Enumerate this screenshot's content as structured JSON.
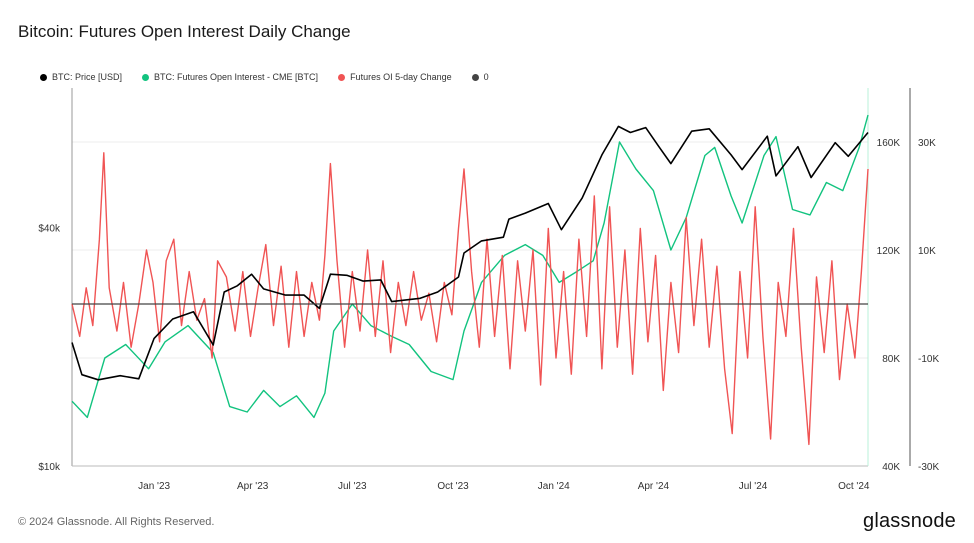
{
  "page": {
    "title": "Bitcoin: Futures Open Interest Daily Change",
    "footer": "© 2024 Glassnode. All Rights Reserved.",
    "brand": "glassnode"
  },
  "legend": [
    {
      "label": "BTC: Price [USD]",
      "color": "#000000"
    },
    {
      "label": "BTC: Futures Open Interest - CME [BTC]",
      "color": "#12c37f"
    },
    {
      "label": "Futures OI 5-day Change",
      "color": "#f05454"
    },
    {
      "label": "0",
      "color": "#444444"
    }
  ],
  "chart_data": {
    "type": "line",
    "title": "Bitcoin: Futures Open Interest Daily Change",
    "x_ticks": [
      "Jan '23",
      "Apr '23",
      "Jul '23",
      "Oct '23",
      "Jan '24",
      "Apr '24",
      "Jul '24",
      "Oct '24"
    ],
    "x_range": [
      "2022-11-01",
      "2024-10-28"
    ],
    "axes": {
      "price": {
        "scale": "log",
        "range": [
          10000,
          90000
        ],
        "ticks": [
          "$10k",
          "$40k"
        ],
        "side": "left"
      },
      "open_interest": {
        "range": [
          40000,
          180000
        ],
        "ticks": [
          "40K",
          "80K",
          "120K",
          "160K"
        ],
        "side": "right-inner"
      },
      "oi_change": {
        "range": [
          -30000,
          40000
        ],
        "ticks": [
          "-30K",
          "-10K",
          "10K",
          "30K"
        ],
        "side": "right-outer"
      }
    },
    "series": [
      {
        "name": "BTC: Price [USD]",
        "axis": "price",
        "color": "#000000",
        "points": [
          [
            "2022-11-01",
            20500
          ],
          [
            "2022-11-10",
            17000
          ],
          [
            "2022-11-25",
            16500
          ],
          [
            "2022-12-15",
            16900
          ],
          [
            "2023-01-01",
            16600
          ],
          [
            "2023-01-15",
            21000
          ],
          [
            "2023-02-01",
            23500
          ],
          [
            "2023-02-20",
            24500
          ],
          [
            "2023-03-10",
            20200
          ],
          [
            "2023-03-20",
            27500
          ],
          [
            "2023-04-01",
            28500
          ],
          [
            "2023-04-14",
            30500
          ],
          [
            "2023-04-25",
            28000
          ],
          [
            "2023-05-15",
            27000
          ],
          [
            "2023-06-01",
            27000
          ],
          [
            "2023-06-15",
            25000
          ],
          [
            "2023-06-25",
            30500
          ],
          [
            "2023-07-10",
            30300
          ],
          [
            "2023-07-25",
            29300
          ],
          [
            "2023-08-10",
            29500
          ],
          [
            "2023-08-20",
            26000
          ],
          [
            "2023-09-15",
            26500
          ],
          [
            "2023-10-01",
            27500
          ],
          [
            "2023-10-20",
            30000
          ],
          [
            "2023-10-25",
            34500
          ],
          [
            "2023-11-10",
            37000
          ],
          [
            "2023-11-30",
            37800
          ],
          [
            "2023-12-05",
            42000
          ],
          [
            "2023-12-20",
            43500
          ],
          [
            "2024-01-10",
            46000
          ],
          [
            "2024-01-22",
            39500
          ],
          [
            "2024-02-10",
            47500
          ],
          [
            "2024-02-28",
            61000
          ],
          [
            "2024-03-14",
            72000
          ],
          [
            "2024-03-25",
            69500
          ],
          [
            "2024-04-08",
            71500
          ],
          [
            "2024-04-20",
            64000
          ],
          [
            "2024-05-01",
            58000
          ],
          [
            "2024-05-20",
            70000
          ],
          [
            "2024-06-05",
            71000
          ],
          [
            "2024-06-25",
            61000
          ],
          [
            "2024-07-05",
            56000
          ],
          [
            "2024-07-28",
            68000
          ],
          [
            "2024-08-05",
            54000
          ],
          [
            "2024-08-25",
            64000
          ],
          [
            "2024-09-06",
            53500
          ],
          [
            "2024-09-28",
            65500
          ],
          [
            "2024-10-10",
            60500
          ],
          [
            "2024-10-28",
            69500
          ]
        ]
      },
      {
        "name": "BTC: Futures Open Interest - CME [BTC]",
        "axis": "open_interest",
        "color": "#12c37f",
        "points": [
          [
            "2022-11-01",
            64000
          ],
          [
            "2022-11-15",
            58000
          ],
          [
            "2022-12-01",
            80000
          ],
          [
            "2022-12-20",
            85000
          ],
          [
            "2023-01-10",
            76000
          ],
          [
            "2023-01-25",
            86000
          ],
          [
            "2023-02-15",
            92000
          ],
          [
            "2023-03-10",
            82000
          ],
          [
            "2023-03-25",
            62000
          ],
          [
            "2023-04-10",
            60000
          ],
          [
            "2023-04-25",
            68000
          ],
          [
            "2023-05-10",
            62000
          ],
          [
            "2023-05-25",
            66000
          ],
          [
            "2023-06-10",
            58000
          ],
          [
            "2023-06-20",
            67000
          ],
          [
            "2023-06-28",
            90000
          ],
          [
            "2023-07-15",
            100000
          ],
          [
            "2023-08-01",
            92000
          ],
          [
            "2023-08-20",
            88000
          ],
          [
            "2023-09-05",
            85000
          ],
          [
            "2023-09-25",
            75000
          ],
          [
            "2023-10-15",
            72000
          ],
          [
            "2023-10-25",
            90000
          ],
          [
            "2023-11-10",
            108000
          ],
          [
            "2023-12-01",
            118000
          ],
          [
            "2023-12-20",
            122000
          ],
          [
            "2024-01-05",
            118000
          ],
          [
            "2024-01-20",
            108000
          ],
          [
            "2024-02-05",
            112000
          ],
          [
            "2024-02-20",
            116000
          ],
          [
            "2024-03-01",
            130000
          ],
          [
            "2024-03-15",
            160000
          ],
          [
            "2024-03-30",
            150000
          ],
          [
            "2024-04-15",
            142000
          ],
          [
            "2024-05-01",
            120000
          ],
          [
            "2024-05-15",
            132000
          ],
          [
            "2024-06-01",
            155000
          ],
          [
            "2024-06-10",
            158000
          ],
          [
            "2024-06-25",
            140000
          ],
          [
            "2024-07-05",
            130000
          ],
          [
            "2024-07-25",
            155000
          ],
          [
            "2024-08-05",
            162000
          ],
          [
            "2024-08-20",
            135000
          ],
          [
            "2024-09-05",
            133000
          ],
          [
            "2024-09-20",
            145000
          ],
          [
            "2024-10-05",
            142000
          ],
          [
            "2024-10-20",
            158000
          ],
          [
            "2024-10-28",
            170000
          ]
        ]
      },
      {
        "name": "Futures OI 5-day Change",
        "axis": "oi_change",
        "color": "#f05454",
        "points": [
          [
            "2022-11-01",
            0
          ],
          [
            "2022-11-08",
            -6000
          ],
          [
            "2022-11-14",
            3000
          ],
          [
            "2022-11-20",
            -4000
          ],
          [
            "2022-11-26",
            12000
          ],
          [
            "2022-11-30",
            28000
          ],
          [
            "2022-12-05",
            3000
          ],
          [
            "2022-12-12",
            -5000
          ],
          [
            "2022-12-18",
            4000
          ],
          [
            "2022-12-25",
            -8000
          ],
          [
            "2023-01-01",
            0
          ],
          [
            "2023-01-08",
            10000
          ],
          [
            "2023-01-14",
            4000
          ],
          [
            "2023-01-20",
            -7000
          ],
          [
            "2023-01-26",
            8000
          ],
          [
            "2023-02-02",
            12000
          ],
          [
            "2023-02-09",
            -4000
          ],
          [
            "2023-02-16",
            6000
          ],
          [
            "2023-02-23",
            -3000
          ],
          [
            "2023-03-02",
            1000
          ],
          [
            "2023-03-09",
            -10000
          ],
          [
            "2023-03-14",
            8000
          ],
          [
            "2023-03-22",
            5000
          ],
          [
            "2023-03-30",
            -5000
          ],
          [
            "2023-04-06",
            6000
          ],
          [
            "2023-04-13",
            -6000
          ],
          [
            "2023-04-20",
            3000
          ],
          [
            "2023-04-27",
            11000
          ],
          [
            "2023-05-04",
            -4000
          ],
          [
            "2023-05-11",
            7000
          ],
          [
            "2023-05-18",
            -8000
          ],
          [
            "2023-05-25",
            6000
          ],
          [
            "2023-06-01",
            -6000
          ],
          [
            "2023-06-08",
            4000
          ],
          [
            "2023-06-15",
            -3000
          ],
          [
            "2023-06-20",
            9000
          ],
          [
            "2023-06-25",
            26000
          ],
          [
            "2023-07-01",
            8000
          ],
          [
            "2023-07-08",
            -8000
          ],
          [
            "2023-07-15",
            6000
          ],
          [
            "2023-07-22",
            -5000
          ],
          [
            "2023-07-29",
            10000
          ],
          [
            "2023-08-05",
            -6000
          ],
          [
            "2023-08-12",
            8000
          ],
          [
            "2023-08-19",
            -9000
          ],
          [
            "2023-08-26",
            4000
          ],
          [
            "2023-09-02",
            -4000
          ],
          [
            "2023-09-09",
            6000
          ],
          [
            "2023-09-16",
            -3000
          ],
          [
            "2023-09-23",
            2000
          ],
          [
            "2023-09-30",
            -7000
          ],
          [
            "2023-10-07",
            4000
          ],
          [
            "2023-10-14",
            -2000
          ],
          [
            "2023-10-20",
            14000
          ],
          [
            "2023-10-25",
            25000
          ],
          [
            "2023-11-01",
            6000
          ],
          [
            "2023-11-08",
            -8000
          ],
          [
            "2023-11-15",
            12000
          ],
          [
            "2023-11-22",
            -6000
          ],
          [
            "2023-11-29",
            9000
          ],
          [
            "2023-12-06",
            -12000
          ],
          [
            "2023-12-13",
            8000
          ],
          [
            "2023-12-20",
            -5000
          ],
          [
            "2023-12-27",
            10000
          ],
          [
            "2024-01-03",
            -15000
          ],
          [
            "2024-01-10",
            14000
          ],
          [
            "2024-01-17",
            -10000
          ],
          [
            "2024-01-24",
            6000
          ],
          [
            "2024-01-31",
            -13000
          ],
          [
            "2024-02-07",
            12000
          ],
          [
            "2024-02-14",
            -6000
          ],
          [
            "2024-02-21",
            20000
          ],
          [
            "2024-02-28",
            -12000
          ],
          [
            "2024-03-06",
            18000
          ],
          [
            "2024-03-13",
            -8000
          ],
          [
            "2024-03-20",
            10000
          ],
          [
            "2024-03-27",
            -13000
          ],
          [
            "2024-04-03",
            14000
          ],
          [
            "2024-04-10",
            -7000
          ],
          [
            "2024-04-17",
            9000
          ],
          [
            "2024-04-24",
            -16000
          ],
          [
            "2024-05-01",
            4000
          ],
          [
            "2024-05-08",
            -9000
          ],
          [
            "2024-05-15",
            16000
          ],
          [
            "2024-05-22",
            -4000
          ],
          [
            "2024-05-29",
            12000
          ],
          [
            "2024-06-05",
            -8000
          ],
          [
            "2024-06-12",
            7000
          ],
          [
            "2024-06-19",
            -12000
          ],
          [
            "2024-06-26",
            -24000
          ],
          [
            "2024-07-03",
            6000
          ],
          [
            "2024-07-10",
            -10000
          ],
          [
            "2024-07-17",
            18000
          ],
          [
            "2024-07-24",
            -6000
          ],
          [
            "2024-07-31",
            -25000
          ],
          [
            "2024-08-07",
            4000
          ],
          [
            "2024-08-14",
            -6000
          ],
          [
            "2024-08-21",
            14000
          ],
          [
            "2024-08-28",
            -8000
          ],
          [
            "2024-09-04",
            -26000
          ],
          [
            "2024-09-11",
            5000
          ],
          [
            "2024-09-18",
            -9000
          ],
          [
            "2024-09-25",
            8000
          ],
          [
            "2024-10-02",
            -14000
          ],
          [
            "2024-10-09",
            0
          ],
          [
            "2024-10-16",
            -10000
          ],
          [
            "2024-10-22",
            6000
          ],
          [
            "2024-10-28",
            25000
          ]
        ]
      },
      {
        "name": "0",
        "axis": "oi_change",
        "color": "#444444",
        "points": [
          [
            "2022-11-01",
            0
          ],
          [
            "2024-10-28",
            0
          ]
        ]
      }
    ]
  }
}
